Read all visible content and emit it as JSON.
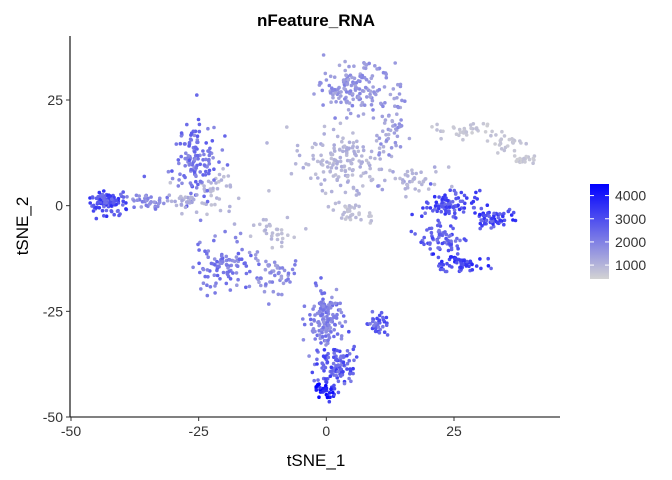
{
  "chart_data": {
    "type": "scatter",
    "title": "nFeature_RNA",
    "xlabel": "tSNE_1",
    "ylabel": "tSNE_2",
    "xlim": [
      -50,
      46
    ],
    "ylim": [
      -50,
      40
    ],
    "xticks": [
      -50,
      -25,
      0,
      25
    ],
    "yticks": [
      -50,
      -25,
      0,
      25
    ],
    "grid": false,
    "legend": {
      "position": "right",
      "type": "colorbar",
      "range": [
        400,
        4500
      ],
      "ticks": [
        1000,
        2000,
        3000,
        4000
      ],
      "color_low": "#d3d3d3",
      "color_high": "#0000ff"
    },
    "clusters": [
      {
        "center": [
          5,
          28
        ],
        "spread": [
          6,
          5
        ],
        "n": 140,
        "value": 1600
      },
      {
        "center": [
          3,
          10
        ],
        "spread": [
          7,
          7
        ],
        "n": 160,
        "value": 1000
      },
      {
        "center": [
          12,
          20
        ],
        "spread": [
          3,
          9
        ],
        "n": 60,
        "value": 1500
      },
      {
        "center": [
          -22,
          3
        ],
        "spread": [
          5,
          4
        ],
        "n": 40,
        "value": 900
      },
      {
        "center": [
          -26,
          11
        ],
        "spread": [
          4,
          8
        ],
        "n": 130,
        "value": 2200
      },
      {
        "center": [
          -43,
          1
        ],
        "spread": [
          3,
          2
        ],
        "n": 110,
        "value": 2900
      },
      {
        "center": [
          -35,
          1
        ],
        "spread": [
          3,
          1.5
        ],
        "n": 35,
        "value": 1800
      },
      {
        "center": [
          -28,
          1
        ],
        "spread": [
          3,
          1.5
        ],
        "n": 25,
        "value": 1100
      },
      {
        "center": [
          -20,
          -14
        ],
        "spread": [
          5,
          5
        ],
        "n": 100,
        "value": 2100
      },
      {
        "center": [
          -10,
          -17
        ],
        "spread": [
          4,
          4
        ],
        "n": 50,
        "value": 1700
      },
      {
        "center": [
          -10,
          -6
        ],
        "spread": [
          4,
          3
        ],
        "n": 30,
        "value": 900
      },
      {
        "center": [
          0,
          -27
        ],
        "spread": [
          3,
          6
        ],
        "n": 140,
        "value": 2000
      },
      {
        "center": [
          2,
          -38
        ],
        "spread": [
          3,
          4
        ],
        "n": 100,
        "value": 2700
      },
      {
        "center": [
          0,
          -44
        ],
        "spread": [
          1.8,
          1.5
        ],
        "n": 35,
        "value": 3800
      },
      {
        "center": [
          10,
          -28
        ],
        "spread": [
          2,
          2
        ],
        "n": 35,
        "value": 2600
      },
      {
        "center": [
          24,
          0
        ],
        "spread": [
          4,
          3
        ],
        "n": 90,
        "value": 2900
      },
      {
        "center": [
          33,
          -3
        ],
        "spread": [
          3,
          2
        ],
        "n": 60,
        "value": 3100
      },
      {
        "center": [
          23,
          -8
        ],
        "spread": [
          4,
          3
        ],
        "n": 70,
        "value": 2600
      },
      {
        "center": [
          26,
          -14
        ],
        "spread": [
          4,
          2
        ],
        "n": 60,
        "value": 3100
      },
      {
        "center": [
          18,
          6
        ],
        "spread": [
          4,
          3
        ],
        "n": 35,
        "value": 1000
      },
      {
        "center": [
          5,
          -2
        ],
        "spread": [
          4,
          2.5
        ],
        "n": 30,
        "value": 800
      },
      {
        "center": [
          27,
          18
        ],
        "spread": [
          5,
          1.5
        ],
        "n": 35,
        "value": 650
      },
      {
        "center": [
          35,
          15
        ],
        "spread": [
          3,
          1.5
        ],
        "n": 25,
        "value": 650
      },
      {
        "center": [
          39,
          11
        ],
        "spread": [
          2,
          1
        ],
        "n": 20,
        "value": 600
      }
    ]
  }
}
